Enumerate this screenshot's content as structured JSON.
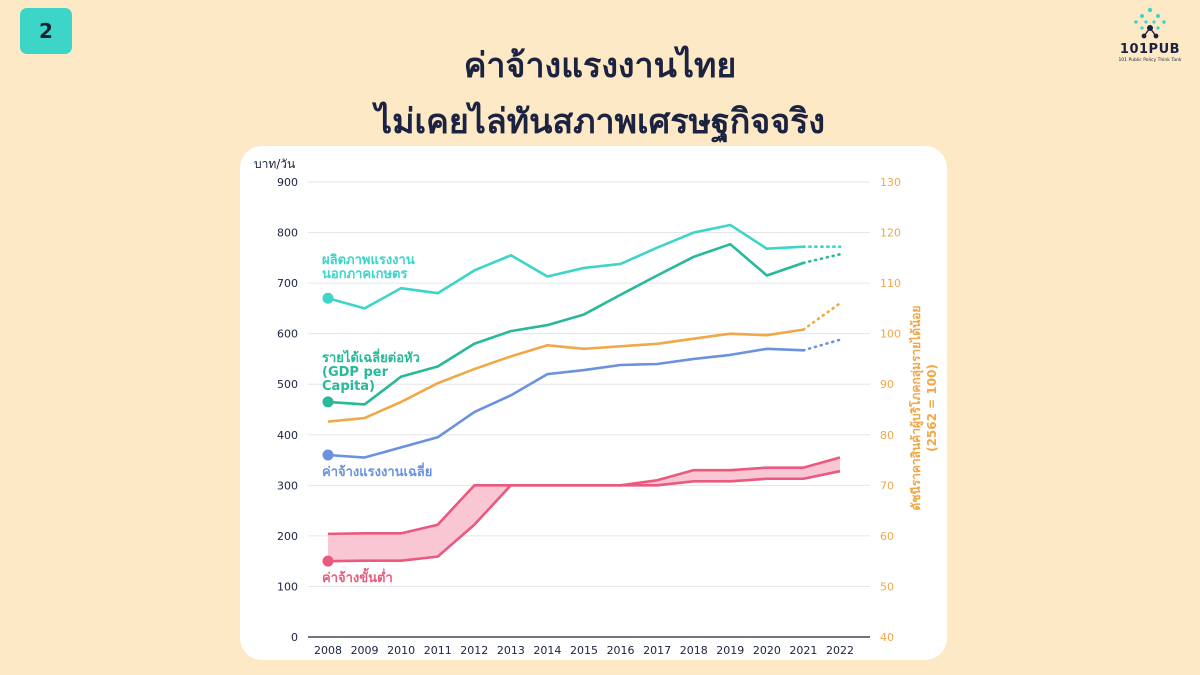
{
  "page_number": "2",
  "title_line1": "ค่าจ้างแรงงานไทย",
  "title_line2": "ไม่เคยไล่ทันสภาพเศรษฐกิจจริง",
  "logo": {
    "text": "101PUB",
    "subtext": "101 Public Policy Think Tank"
  },
  "colors": {
    "background": "#fde9c6",
    "badge": "#3ed5c9",
    "title": "#1b2340",
    "productivity": "#3ed5c9",
    "gdp": "#28b89a",
    "avg_wage": "#6a92de",
    "cpi": "#f0a848",
    "min_wage": "#ea5a7e",
    "min_wage_fill": "#f9c6d4"
  },
  "chart_data": {
    "type": "line",
    "x": [
      2008,
      2009,
      2010,
      2011,
      2012,
      2013,
      2014,
      2015,
      2016,
      2017,
      2018,
      2019,
      2020,
      2021,
      2022
    ],
    "ylabel": "บาท/วัน",
    "ylim": [
      0,
      900
    ],
    "yticks": [
      0,
      100,
      200,
      300,
      400,
      500,
      600,
      700,
      800,
      900
    ],
    "y2label_line1": "ดัชนีราคาสินค้าผู้บริโภคกลุ่มรายได้น้อย",
    "y2label_line2": "(2562 = 100)",
    "y2lim": [
      40,
      130
    ],
    "y2ticks": [
      40,
      50,
      60,
      70,
      80,
      90,
      100,
      110,
      120,
      130
    ],
    "dotted_from": 2021,
    "series": [
      {
        "key": "productivity",
        "name_line1": "ผลิตภาพแรงงาน",
        "name_line2": "นอกภาคเกษตร",
        "axis": "left",
        "values": [
          670,
          650,
          690,
          680,
          725,
          755,
          713,
          730,
          738,
          770,
          800,
          815,
          768,
          772,
          772
        ]
      },
      {
        "key": "productivity_b",
        "axis": "left",
        "values": [
          null,
          null,
          null,
          null,
          null,
          null,
          null,
          null,
          null,
          null,
          null,
          null,
          null,
          null,
          null
        ]
      },
      {
        "key": "gdp",
        "name_line1": "รายได้เฉลี่ยต่อหัว",
        "name_line2": "(GDP per",
        "name_line3": "Capita)",
        "axis": "left",
        "values": [
          465,
          460,
          515,
          535,
          580,
          605,
          617,
          638,
          677,
          715,
          752,
          777,
          715,
          740,
          757
        ]
      },
      {
        "key": "avg_wage",
        "name_line1": "ค่าจ้างแรงงานเฉลี่ย",
        "axis": "left",
        "values": [
          360,
          355,
          375,
          395,
          445,
          478,
          520,
          528,
          538,
          540,
          550,
          558,
          570,
          567,
          588
        ]
      },
      {
        "key": "cpi",
        "axis": "right",
        "values": [
          82.6,
          83.3,
          86.5,
          90.2,
          93.0,
          95.5,
          97.7,
          97.0,
          97.5,
          98.0,
          99.0,
          100.0,
          99.7,
          100.8,
          106.0
        ]
      },
      {
        "key": "min_wage_high",
        "axis": "left",
        "values": [
          204,
          205,
          205,
          222,
          300,
          300,
          300,
          300,
          300,
          310,
          330,
          330,
          335,
          335,
          355
        ]
      },
      {
        "key": "min_wage_low",
        "name_line1": "ค่าจ้างขั้นต่ำ",
        "axis": "left",
        "values": [
          150,
          151,
          151,
          159,
          222,
          300,
          300,
          300,
          300,
          300,
          308,
          308,
          313,
          313,
          328
        ]
      }
    ]
  }
}
